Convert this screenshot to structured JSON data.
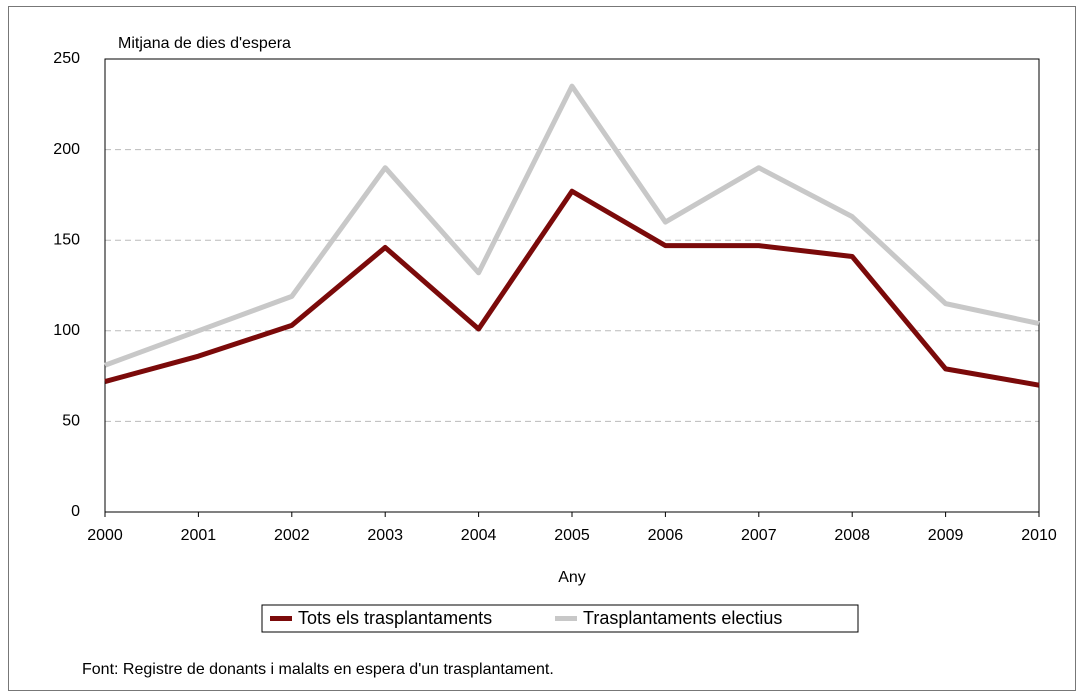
{
  "chart_data": {
    "type": "line",
    "y_label": "Mitjana de dies d'espera",
    "x_label": "Any",
    "source": "Font: Registre de donants i malalts en espera d'un trasplantament.",
    "x": [
      2000,
      2001,
      2002,
      2003,
      2004,
      2005,
      2006,
      2007,
      2008,
      2009,
      2010
    ],
    "series": [
      {
        "name": "Tots els trasplantaments",
        "color": "#7b0a0a",
        "values": [
          72,
          86,
          103,
          146,
          101,
          177,
          147,
          147,
          141,
          79,
          70
        ]
      },
      {
        "name": "Trasplantaments electius",
        "color": "#c8c8c8",
        "values": [
          81,
          100,
          119,
          190,
          132,
          235,
          160,
          190,
          163,
          115,
          104
        ]
      }
    ],
    "xlim": [
      2000,
      2010
    ],
    "xticks": [
      2000,
      2001,
      2002,
      2003,
      2004,
      2005,
      2006,
      2007,
      2008,
      2009,
      2010
    ],
    "ylim": [
      0,
      250
    ],
    "yticks": [
      0,
      50,
      100,
      150,
      200,
      250
    ],
    "grid": true,
    "legend": "bottom"
  }
}
